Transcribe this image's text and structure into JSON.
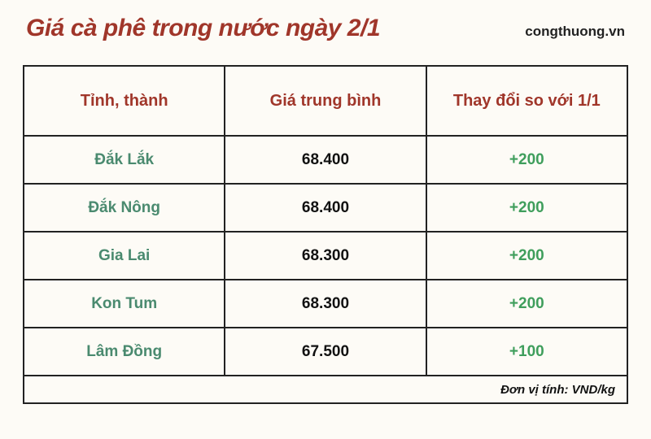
{
  "header": {
    "title": "Giá cà phê trong nước ngày 2/1",
    "source": "congthuong.vn"
  },
  "table": {
    "columns": [
      "Tỉnh, thành",
      "Giá trung bình",
      "Thay đổi so với 1/1"
    ],
    "rows": [
      {
        "province": "Đắk Lắk",
        "price": "68.400",
        "change": "+200"
      },
      {
        "province": "Đắk Nông",
        "price": "68.400",
        "change": "+200"
      },
      {
        "province": "Gia Lai",
        "price": "68.300",
        "change": "+200"
      },
      {
        "province": "Kon Tum",
        "price": "68.300",
        "change": "+200"
      },
      {
        "province": "Lâm Đồng",
        "price": "67.500",
        "change": "+100"
      }
    ],
    "unit_label": "Đơn vị tính: VND/kg"
  },
  "style": {
    "background_color": "#fdfbf6",
    "border_color": "#222222",
    "title_color": "#a0362a",
    "header_text_color": "#a0362a",
    "province_color": "#4a8a6f",
    "price_color": "#111111",
    "change_color": "#3f9e5c",
    "title_fontsize": 30,
    "header_fontsize": 20,
    "cell_fontsize": 19,
    "unit_fontsize": 15,
    "header_row_height": 86,
    "data_row_height": 59,
    "unit_row_height": 34,
    "col_widths_pct": [
      33.3,
      33.3,
      33.4
    ]
  }
}
